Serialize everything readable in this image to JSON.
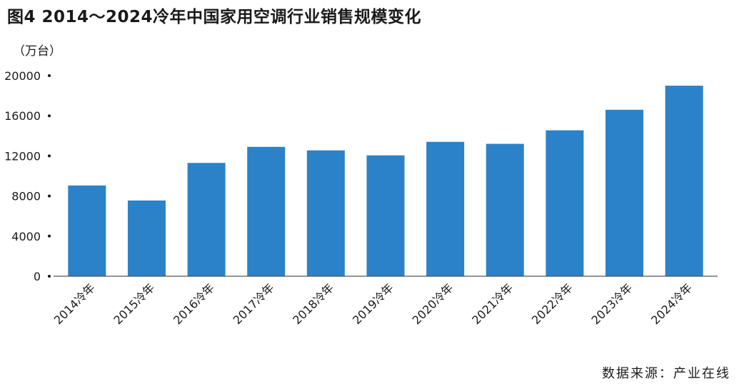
{
  "chart_data": {
    "type": "bar",
    "title": "图4  2014～2024冷年中国家用空调行业销售规模变化",
    "unit_label": "（万台）",
    "source": "数据来源：产业在线",
    "categories": [
      "2014冷年",
      "2015冷年",
      "2016冷年",
      "2017冷年",
      "2018冷年",
      "2019冷年",
      "2020冷年",
      "2021冷年",
      "2022冷年",
      "2023冷年",
      "2024冷年"
    ],
    "values": [
      9050,
      7550,
      11300,
      12900,
      12550,
      12050,
      13400,
      13200,
      14550,
      16600,
      19000
    ],
    "ylim": [
      0,
      20000
    ],
    "yticks": [
      0,
      4000,
      8000,
      12000,
      16000,
      20000
    ],
    "ytick_labels": [
      "0",
      "4000",
      "8000",
      "12000",
      "16000",
      "20000"
    ],
    "bar_color": "#2b82c8",
    "grid": false
  }
}
